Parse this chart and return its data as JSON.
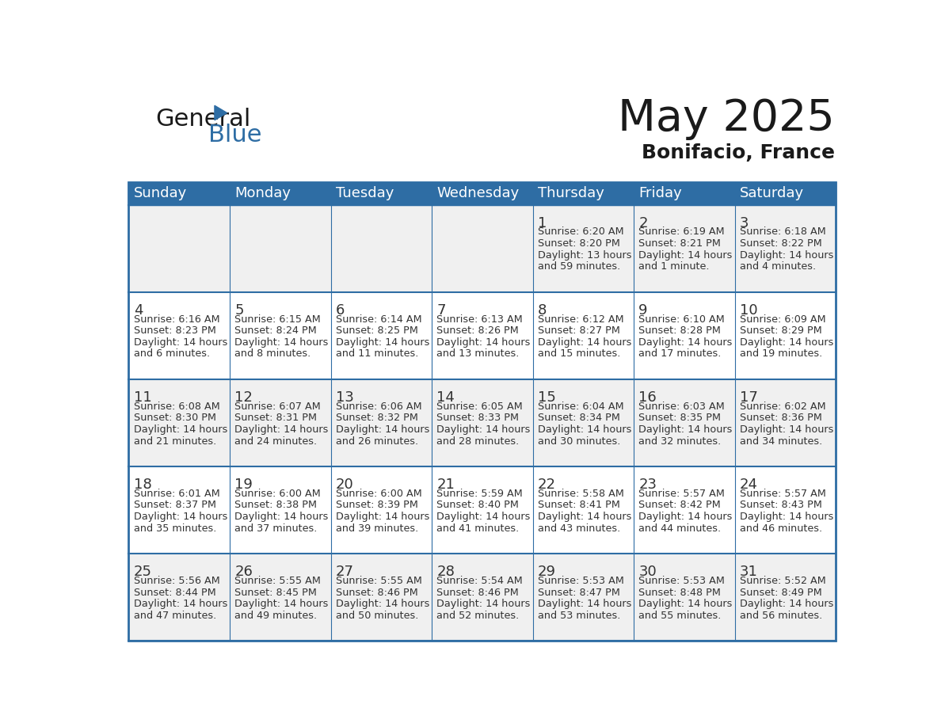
{
  "title": "May 2025",
  "subtitle": "Bonifacio, France",
  "header_bg": "#2E6DA4",
  "header_text_color": "#FFFFFF",
  "cell_bg_even": "#F0F0F0",
  "cell_bg_odd": "#FFFFFF",
  "border_color": "#2E6DA4",
  "day_names": [
    "Sunday",
    "Monday",
    "Tuesday",
    "Wednesday",
    "Thursday",
    "Friday",
    "Saturday"
  ],
  "title_color": "#1a1a1a",
  "subtitle_color": "#1a1a1a",
  "days": [
    {
      "day": 1,
      "col": 4,
      "row": 0,
      "sunrise": "6:20 AM",
      "sunset": "8:20 PM",
      "daylight": "13 hours and 59 minutes."
    },
    {
      "day": 2,
      "col": 5,
      "row": 0,
      "sunrise": "6:19 AM",
      "sunset": "8:21 PM",
      "daylight": "14 hours and 1 minute."
    },
    {
      "day": 3,
      "col": 6,
      "row": 0,
      "sunrise": "6:18 AM",
      "sunset": "8:22 PM",
      "daylight": "14 hours and 4 minutes."
    },
    {
      "day": 4,
      "col": 0,
      "row": 1,
      "sunrise": "6:16 AM",
      "sunset": "8:23 PM",
      "daylight": "14 hours and 6 minutes."
    },
    {
      "day": 5,
      "col": 1,
      "row": 1,
      "sunrise": "6:15 AM",
      "sunset": "8:24 PM",
      "daylight": "14 hours and 8 minutes."
    },
    {
      "day": 6,
      "col": 2,
      "row": 1,
      "sunrise": "6:14 AM",
      "sunset": "8:25 PM",
      "daylight": "14 hours and 11 minutes."
    },
    {
      "day": 7,
      "col": 3,
      "row": 1,
      "sunrise": "6:13 AM",
      "sunset": "8:26 PM",
      "daylight": "14 hours and 13 minutes."
    },
    {
      "day": 8,
      "col": 4,
      "row": 1,
      "sunrise": "6:12 AM",
      "sunset": "8:27 PM",
      "daylight": "14 hours and 15 minutes."
    },
    {
      "day": 9,
      "col": 5,
      "row": 1,
      "sunrise": "6:10 AM",
      "sunset": "8:28 PM",
      "daylight": "14 hours and 17 minutes."
    },
    {
      "day": 10,
      "col": 6,
      "row": 1,
      "sunrise": "6:09 AM",
      "sunset": "8:29 PM",
      "daylight": "14 hours and 19 minutes."
    },
    {
      "day": 11,
      "col": 0,
      "row": 2,
      "sunrise": "6:08 AM",
      "sunset": "8:30 PM",
      "daylight": "14 hours and 21 minutes."
    },
    {
      "day": 12,
      "col": 1,
      "row": 2,
      "sunrise": "6:07 AM",
      "sunset": "8:31 PM",
      "daylight": "14 hours and 24 minutes."
    },
    {
      "day": 13,
      "col": 2,
      "row": 2,
      "sunrise": "6:06 AM",
      "sunset": "8:32 PM",
      "daylight": "14 hours and 26 minutes."
    },
    {
      "day": 14,
      "col": 3,
      "row": 2,
      "sunrise": "6:05 AM",
      "sunset": "8:33 PM",
      "daylight": "14 hours and 28 minutes."
    },
    {
      "day": 15,
      "col": 4,
      "row": 2,
      "sunrise": "6:04 AM",
      "sunset": "8:34 PM",
      "daylight": "14 hours and 30 minutes."
    },
    {
      "day": 16,
      "col": 5,
      "row": 2,
      "sunrise": "6:03 AM",
      "sunset": "8:35 PM",
      "daylight": "14 hours and 32 minutes."
    },
    {
      "day": 17,
      "col": 6,
      "row": 2,
      "sunrise": "6:02 AM",
      "sunset": "8:36 PM",
      "daylight": "14 hours and 34 minutes."
    },
    {
      "day": 18,
      "col": 0,
      "row": 3,
      "sunrise": "6:01 AM",
      "sunset": "8:37 PM",
      "daylight": "14 hours and 35 minutes."
    },
    {
      "day": 19,
      "col": 1,
      "row": 3,
      "sunrise": "6:00 AM",
      "sunset": "8:38 PM",
      "daylight": "14 hours and 37 minutes."
    },
    {
      "day": 20,
      "col": 2,
      "row": 3,
      "sunrise": "6:00 AM",
      "sunset": "8:39 PM",
      "daylight": "14 hours and 39 minutes."
    },
    {
      "day": 21,
      "col": 3,
      "row": 3,
      "sunrise": "5:59 AM",
      "sunset": "8:40 PM",
      "daylight": "14 hours and 41 minutes."
    },
    {
      "day": 22,
      "col": 4,
      "row": 3,
      "sunrise": "5:58 AM",
      "sunset": "8:41 PM",
      "daylight": "14 hours and 43 minutes."
    },
    {
      "day": 23,
      "col": 5,
      "row": 3,
      "sunrise": "5:57 AM",
      "sunset": "8:42 PM",
      "daylight": "14 hours and 44 minutes."
    },
    {
      "day": 24,
      "col": 6,
      "row": 3,
      "sunrise": "5:57 AM",
      "sunset": "8:43 PM",
      "daylight": "14 hours and 46 minutes."
    },
    {
      "day": 25,
      "col": 0,
      "row": 4,
      "sunrise": "5:56 AM",
      "sunset": "8:44 PM",
      "daylight": "14 hours and 47 minutes."
    },
    {
      "day": 26,
      "col": 1,
      "row": 4,
      "sunrise": "5:55 AM",
      "sunset": "8:45 PM",
      "daylight": "14 hours and 49 minutes."
    },
    {
      "day": 27,
      "col": 2,
      "row": 4,
      "sunrise": "5:55 AM",
      "sunset": "8:46 PM",
      "daylight": "14 hours and 50 minutes."
    },
    {
      "day": 28,
      "col": 3,
      "row": 4,
      "sunrise": "5:54 AM",
      "sunset": "8:46 PM",
      "daylight": "14 hours and 52 minutes."
    },
    {
      "day": 29,
      "col": 4,
      "row": 4,
      "sunrise": "5:53 AM",
      "sunset": "8:47 PM",
      "daylight": "14 hours and 53 minutes."
    },
    {
      "day": 30,
      "col": 5,
      "row": 4,
      "sunrise": "5:53 AM",
      "sunset": "8:48 PM",
      "daylight": "14 hours and 55 minutes."
    },
    {
      "day": 31,
      "col": 6,
      "row": 4,
      "sunrise": "5:52 AM",
      "sunset": "8:49 PM",
      "daylight": "14 hours and 56 minutes."
    }
  ],
  "logo_general_color": "#1a1a1a",
  "logo_blue_color": "#2E6DA4"
}
